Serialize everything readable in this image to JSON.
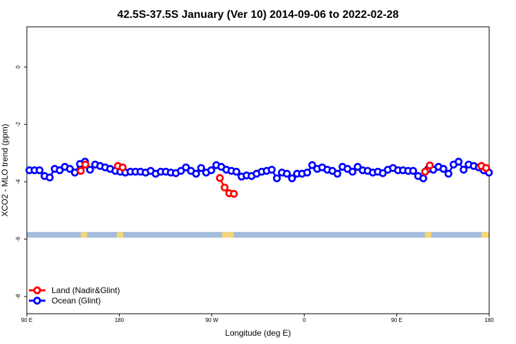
{
  "chart_data": {
    "type": "scatter",
    "title": "42.5S-37.5S January (Ver 10)   2014-09-06 to 2022-02-28",
    "xlabel": "Longitude (deg E)",
    "ylabel": "XCO2 - MLO trend (ppm)",
    "xlim": [
      90,
      450
    ],
    "ylim": [
      -8.6,
      1.4
    ],
    "x_ticks": [
      {
        "value": 90,
        "label": "90 E"
      },
      {
        "value": 162,
        "label": "180"
      },
      {
        "value": 234,
        "label": "90 W"
      },
      {
        "value": 306,
        "label": "0"
      },
      {
        "value": 378,
        "label": "90 E"
      },
      {
        "value": 450,
        "label": "180"
      }
    ],
    "y_ticks": [
      0,
      -2,
      -4,
      -6,
      -8
    ],
    "land_band": {
      "y_top": -5.75,
      "y_bottom": -5.95,
      "ocean_color": "#a4bcdc",
      "land_color": "#f2d77a"
    },
    "land_segments": [
      [
        132,
        137
      ],
      [
        160,
        165
      ],
      [
        242,
        251
      ],
      [
        400,
        405
      ],
      [
        444,
        450
      ]
    ],
    "series": [
      {
        "name": "Land (Nadir&Glint)",
        "color": "#ff0000",
        "points": [
          [
            132.0,
            -3.62
          ],
          [
            135.6,
            -3.4
          ],
          [
            160.9,
            -3.45
          ],
          [
            164.6,
            -3.5
          ],
          [
            240.3,
            -3.87
          ],
          [
            244.0,
            -4.2
          ],
          [
            247.6,
            -4.4
          ],
          [
            251.2,
            -4.42
          ],
          [
            400.1,
            -3.65
          ],
          [
            403.8,
            -3.43
          ],
          [
            443.9,
            -3.45
          ],
          [
            447.6,
            -3.52
          ]
        ]
      },
      {
        "name": "Ocean (Glint)",
        "color": "#0000ff",
        "points": [
          [
            92.0,
            -3.6
          ],
          [
            96.0,
            -3.6
          ],
          [
            99.9,
            -3.6
          ],
          [
            103.8,
            -3.8
          ],
          [
            107.8,
            -3.85
          ],
          [
            111.7,
            -3.55
          ],
          [
            115.6,
            -3.6
          ],
          [
            119.6,
            -3.48
          ],
          [
            123.5,
            -3.55
          ],
          [
            127.4,
            -3.68
          ],
          [
            131.4,
            -3.38
          ],
          [
            135.3,
            -3.3
          ],
          [
            139.2,
            -3.58
          ],
          [
            143.2,
            -3.4
          ],
          [
            147.1,
            -3.45
          ],
          [
            151.0,
            -3.5
          ],
          [
            154.9,
            -3.55
          ],
          [
            158.9,
            -3.62
          ],
          [
            162.8,
            -3.65
          ],
          [
            166.7,
            -3.68
          ],
          [
            170.7,
            -3.65
          ],
          [
            174.6,
            -3.65
          ],
          [
            178.5,
            -3.65
          ],
          [
            182.5,
            -3.68
          ],
          [
            186.4,
            -3.62
          ],
          [
            190.3,
            -3.72
          ],
          [
            194.3,
            -3.65
          ],
          [
            198.2,
            -3.65
          ],
          [
            202.1,
            -3.68
          ],
          [
            206.0,
            -3.7
          ],
          [
            210.0,
            -3.62
          ],
          [
            213.9,
            -3.5
          ],
          [
            217.8,
            -3.62
          ],
          [
            221.8,
            -3.72
          ],
          [
            225.7,
            -3.52
          ],
          [
            229.6,
            -3.68
          ],
          [
            233.6,
            -3.6
          ],
          [
            237.5,
            -3.42
          ],
          [
            241.4,
            -3.48
          ],
          [
            245.4,
            -3.58
          ],
          [
            249.3,
            -3.62
          ],
          [
            253.2,
            -3.65
          ],
          [
            257.2,
            -3.82
          ],
          [
            261.1,
            -3.78
          ],
          [
            265.0,
            -3.8
          ],
          [
            268.9,
            -3.72
          ],
          [
            272.9,
            -3.65
          ],
          [
            276.8,
            -3.62
          ],
          [
            280.7,
            -3.58
          ],
          [
            284.7,
            -3.88
          ],
          [
            288.6,
            -3.68
          ],
          [
            292.5,
            -3.72
          ],
          [
            296.5,
            -3.88
          ],
          [
            300.4,
            -3.72
          ],
          [
            304.3,
            -3.72
          ],
          [
            308.3,
            -3.68
          ],
          [
            312.2,
            -3.42
          ],
          [
            316.1,
            -3.55
          ],
          [
            320.0,
            -3.5
          ],
          [
            324.0,
            -3.58
          ],
          [
            327.9,
            -3.62
          ],
          [
            331.8,
            -3.72
          ],
          [
            335.8,
            -3.48
          ],
          [
            339.7,
            -3.55
          ],
          [
            343.6,
            -3.65
          ],
          [
            347.6,
            -3.48
          ],
          [
            351.5,
            -3.6
          ],
          [
            355.4,
            -3.62
          ],
          [
            359.4,
            -3.68
          ],
          [
            363.3,
            -3.65
          ],
          [
            367.2,
            -3.7
          ],
          [
            371.1,
            -3.58
          ],
          [
            375.1,
            -3.52
          ],
          [
            379.0,
            -3.6
          ],
          [
            382.9,
            -3.6
          ],
          [
            386.9,
            -3.62
          ],
          [
            390.8,
            -3.62
          ],
          [
            394.7,
            -3.8
          ],
          [
            398.7,
            -3.88
          ],
          [
            402.6,
            -3.55
          ],
          [
            406.5,
            -3.58
          ],
          [
            410.5,
            -3.48
          ],
          [
            414.4,
            -3.55
          ],
          [
            418.3,
            -3.72
          ],
          [
            422.3,
            -3.4
          ],
          [
            426.2,
            -3.3
          ],
          [
            430.1,
            -3.58
          ],
          [
            434.0,
            -3.4
          ],
          [
            438.0,
            -3.45
          ],
          [
            441.9,
            -3.5
          ],
          [
            445.8,
            -3.6
          ],
          [
            449.8,
            -3.68
          ]
        ]
      }
    ],
    "legend": {
      "position": "bottom-left",
      "entries": [
        "Land (Nadir&Glint)",
        "Ocean (Glint)"
      ]
    },
    "grid": false
  }
}
